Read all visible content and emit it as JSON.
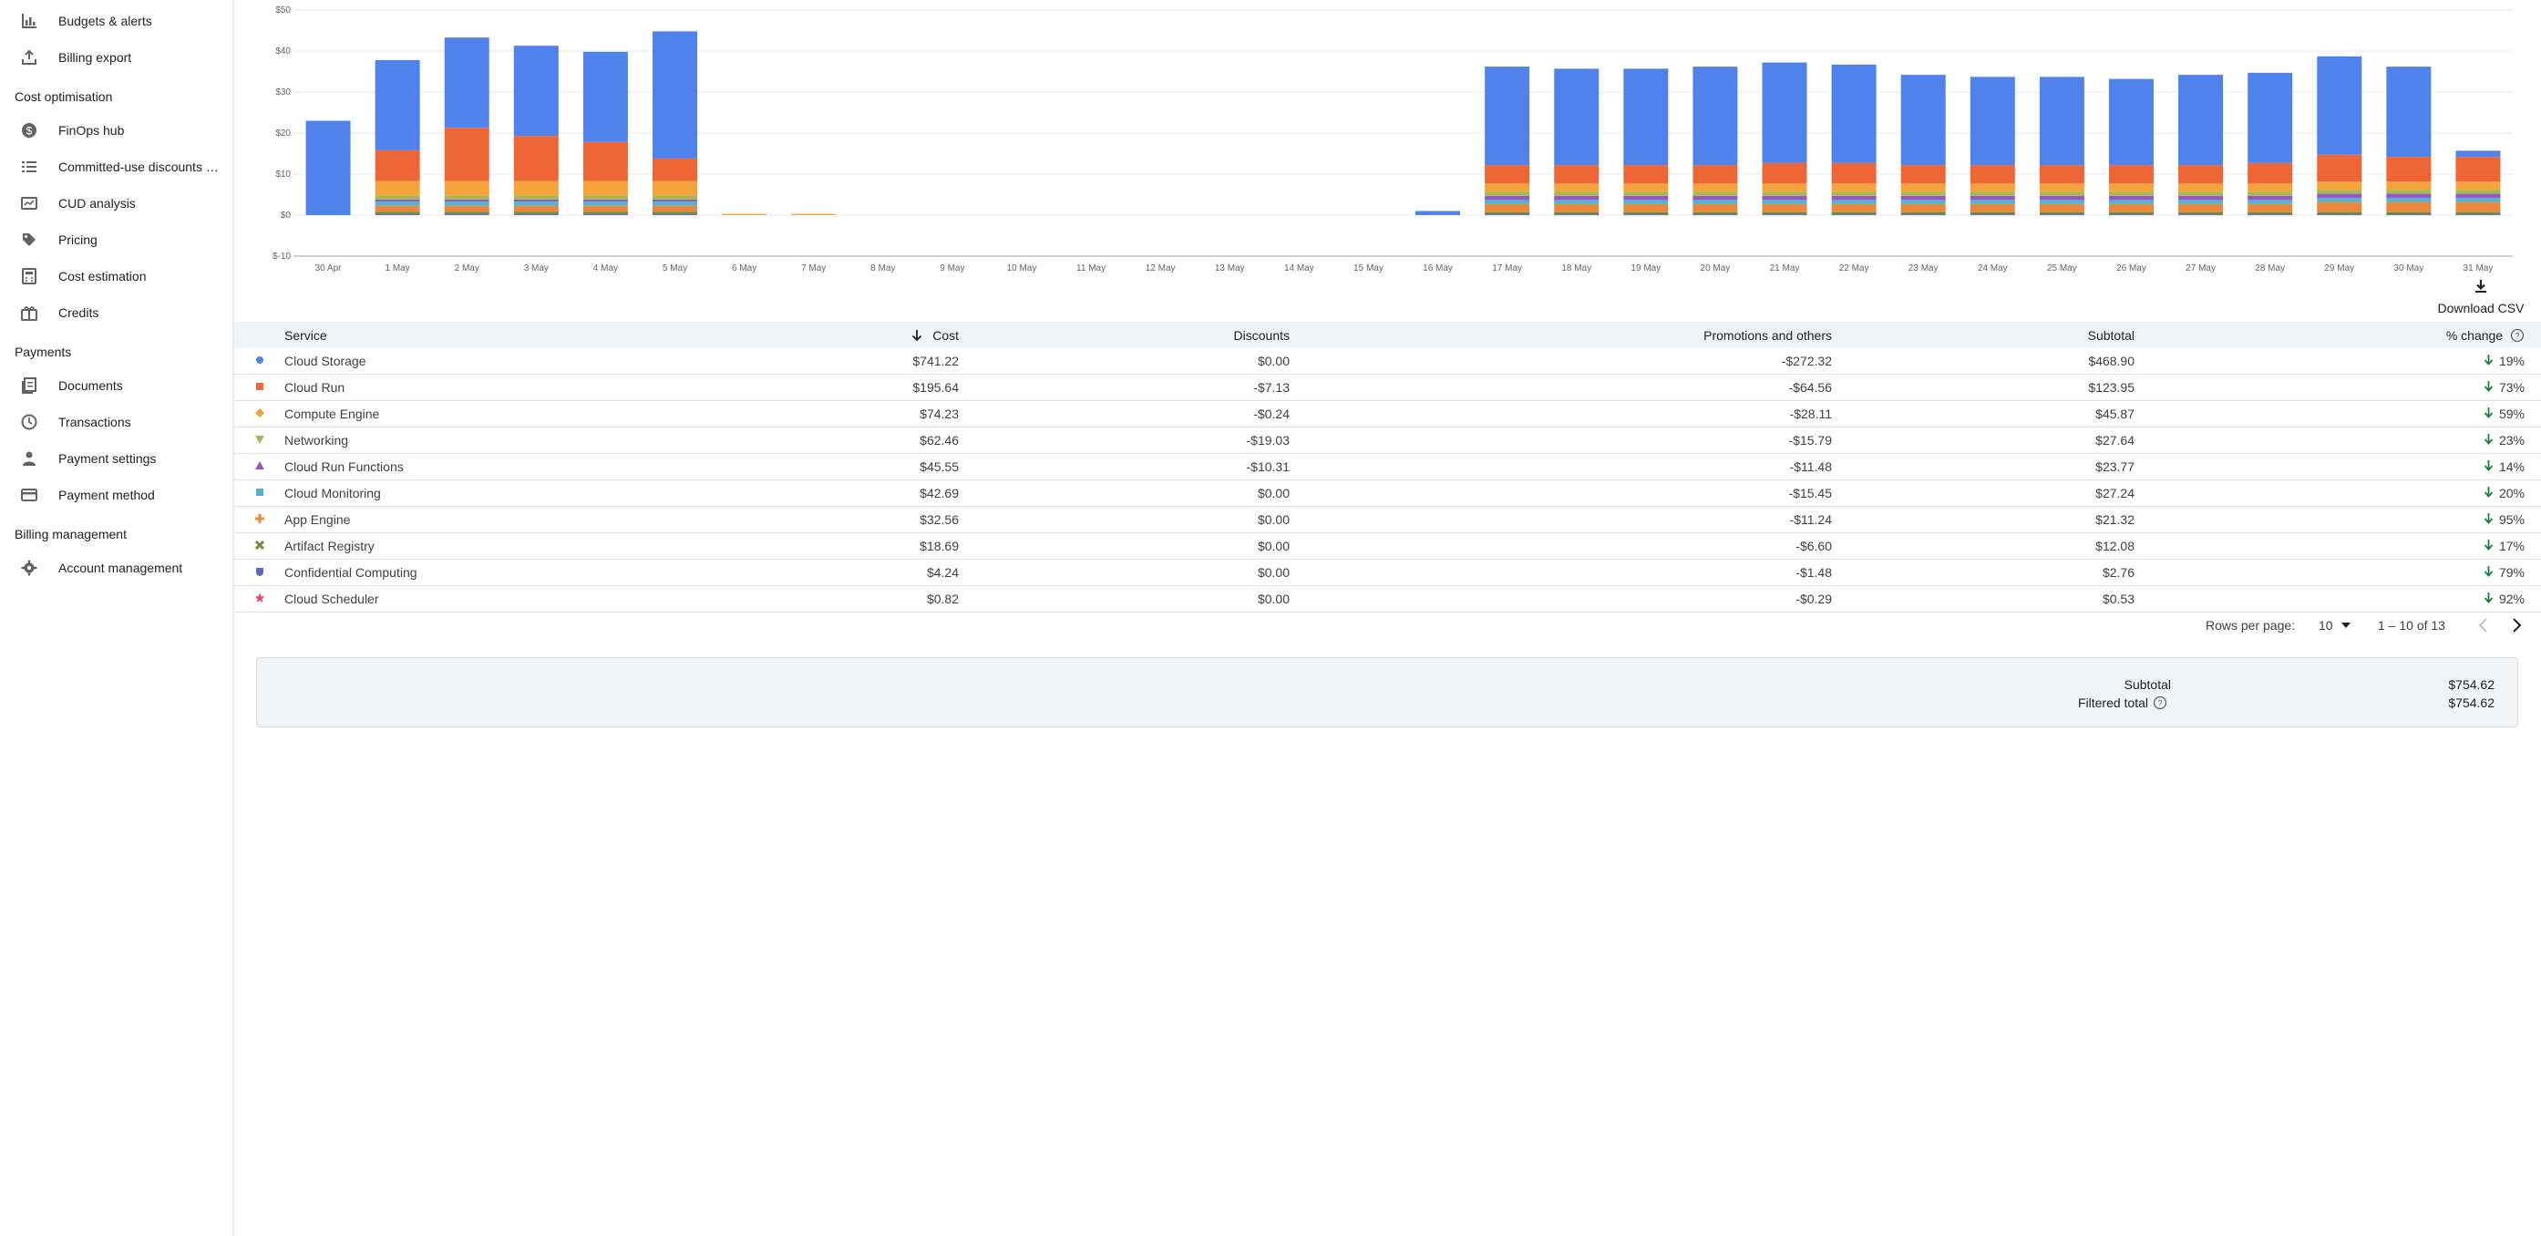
{
  "sidebar": {
    "items": [
      {
        "label": "Budgets & alerts",
        "icon": "budget-chart-icon"
      },
      {
        "label": "Billing export",
        "icon": "upload-icon"
      },
      {
        "section": "Cost optimisation"
      },
      {
        "label": "FinOps hub",
        "icon": "dollar-circle-icon"
      },
      {
        "label": "Committed-use discounts (C…",
        "icon": "list-icon"
      },
      {
        "label": "CUD analysis",
        "icon": "card-analysis-icon"
      },
      {
        "label": "Pricing",
        "icon": "tag-icon"
      },
      {
        "label": "Cost estimation",
        "icon": "calculator-icon"
      },
      {
        "label": "Credits",
        "icon": "gift-icon"
      },
      {
        "section": "Payments"
      },
      {
        "label": "Documents",
        "icon": "documents-icon"
      },
      {
        "label": "Transactions",
        "icon": "clock-icon"
      },
      {
        "label": "Payment settings",
        "icon": "person-icon"
      },
      {
        "label": "Payment method",
        "icon": "credit-card-icon"
      },
      {
        "section": "Billing management"
      },
      {
        "label": "Account management",
        "icon": "gear-icon"
      }
    ]
  },
  "chart_data": {
    "type": "bar",
    "stacked": true,
    "ylim": [
      -10,
      50
    ],
    "yticks": [
      "$-10",
      "$0",
      "$10",
      "$20",
      "$30",
      "$40",
      "$50"
    ],
    "categories": [
      "30 Apr",
      "1 May",
      "2 May",
      "3 May",
      "4 May",
      "5 May",
      "6 May",
      "7 May",
      "8 May",
      "9 May",
      "10 May",
      "11 May",
      "12 May",
      "13 May",
      "14 May",
      "15 May",
      "16 May",
      "17 May",
      "18 May",
      "19 May",
      "20 May",
      "21 May",
      "22 May",
      "23 May",
      "24 May",
      "25 May",
      "26 May",
      "27 May",
      "28 May",
      "29 May",
      "30 May",
      "31 May"
    ],
    "grid": true,
    "series": [
      {
        "name": "Cloud Storage",
        "color": "#4f83eb",
        "values": [
          23,
          22,
          22,
          22,
          22,
          31,
          0,
          0,
          0,
          0,
          0,
          0,
          0,
          0,
          0,
          0,
          1,
          24,
          23.5,
          23.5,
          24,
          24.5,
          24,
          22,
          21.5,
          21.5,
          21,
          22,
          22,
          24,
          22,
          1.5
        ]
      },
      {
        "name": "Cloud Run",
        "color": "#ee6635",
        "values": [
          0,
          7.5,
          13,
          11,
          9.5,
          5.5,
          0,
          0,
          0,
          0,
          0,
          0,
          0,
          0,
          0,
          0,
          0,
          4.5,
          4.5,
          4.5,
          4.5,
          5,
          5,
          4.5,
          4.5,
          4.5,
          4.5,
          4.5,
          5,
          6.5,
          6,
          6
        ]
      },
      {
        "name": "Compute Engine",
        "color": "#f5a43c",
        "values": [
          0,
          3.5,
          3.5,
          3.5,
          3.5,
          3.5,
          0.3,
          0.3,
          0,
          0,
          0,
          0,
          0,
          0,
          0,
          0,
          0,
          2,
          2,
          2,
          2,
          2,
          2,
          2,
          2,
          2,
          2,
          2,
          2,
          2,
          2,
          2
        ]
      },
      {
        "name": "Networking",
        "color": "#a6b851",
        "values": [
          0,
          1,
          1,
          1,
          1,
          1,
          0,
          0,
          0,
          0,
          0,
          0,
          0,
          0,
          0,
          0,
          0,
          1,
          1,
          1,
          1,
          1,
          1,
          1,
          1,
          1,
          1,
          1,
          1,
          1,
          1,
          1
        ]
      },
      {
        "name": "Cloud Run Functions",
        "color": "#9d53c8",
        "values": [
          0,
          0.5,
          0.5,
          0.5,
          0.5,
          0.5,
          0,
          0,
          0,
          0,
          0,
          0,
          0,
          0,
          0,
          0,
          0,
          1,
          1,
          1,
          1,
          1,
          1,
          1,
          1,
          1,
          1,
          1,
          1,
          1,
          1,
          1
        ]
      },
      {
        "name": "Cloud Monitoring",
        "color": "#50b3cf",
        "values": [
          0,
          1,
          1,
          1,
          1,
          1,
          0,
          0,
          0,
          0,
          0,
          0,
          0,
          0,
          0,
          0,
          0,
          1,
          1,
          1,
          1,
          1,
          1,
          1,
          1,
          1,
          1,
          1,
          1,
          1,
          1,
          1
        ]
      },
      {
        "name": "App Engine",
        "color": "#e8883a",
        "values": [
          0,
          1.5,
          1.5,
          1.5,
          1.5,
          1.5,
          0,
          0,
          0,
          0,
          0,
          0,
          0,
          0,
          0,
          0,
          0,
          2,
          2,
          2,
          2,
          2,
          2,
          2,
          2,
          2,
          2,
          2,
          2,
          2.5,
          2.5,
          2.5
        ]
      },
      {
        "name": "Artifact Registry",
        "color": "#6d8a3c",
        "values": [
          0,
          0.5,
          0.5,
          0.5,
          0.5,
          0.5,
          0,
          0,
          0,
          0,
          0,
          0,
          0,
          0,
          0,
          0,
          0,
          0.5,
          0.5,
          0.5,
          0.5,
          0.5,
          0.5,
          0.5,
          0.5,
          0.5,
          0.5,
          0.5,
          0.5,
          0.5,
          0.5,
          0.5
        ]
      },
      {
        "name": "Confidential Computing",
        "color": "#5c6bc0",
        "values": [
          0,
          0.3,
          0.3,
          0.3,
          0.3,
          0.3,
          0,
          0,
          0,
          0,
          0,
          0,
          0,
          0,
          0,
          0,
          0,
          0.2,
          0.2,
          0.2,
          0.2,
          0.2,
          0.2,
          0.2,
          0.2,
          0.2,
          0.2,
          0.2,
          0.2,
          0.2,
          0.2,
          0.2
        ]
      }
    ]
  },
  "download_label": "Download CSV",
  "table": {
    "headers": {
      "service": "Service",
      "cost": "Cost",
      "discounts": "Discounts",
      "promotions": "Promotions and others",
      "subtotal": "Subtotal",
      "change": "% change"
    },
    "rows": [
      {
        "service": "Cloud Storage",
        "cost": "$741.22",
        "discounts": "$0.00",
        "promotions": "-$272.32",
        "subtotal": "$468.90",
        "change": "19%",
        "marker": "circle",
        "color": "#4f83eb"
      },
      {
        "service": "Cloud Run",
        "cost": "$195.64",
        "discounts": "-$7.13",
        "promotions": "-$64.56",
        "subtotal": "$123.95",
        "change": "73%",
        "marker": "square",
        "color": "#ee6635"
      },
      {
        "service": "Compute Engine",
        "cost": "$74.23",
        "discounts": "-$0.24",
        "promotions": "-$28.11",
        "subtotal": "$45.87",
        "change": "59%",
        "marker": "diamond",
        "color": "#f5a43c"
      },
      {
        "service": "Networking",
        "cost": "$62.46",
        "discounts": "-$19.03",
        "promotions": "-$15.79",
        "subtotal": "$27.64",
        "change": "23%",
        "marker": "triangle-down",
        "color": "#a6b851"
      },
      {
        "service": "Cloud Run Functions",
        "cost": "$45.55",
        "discounts": "-$10.31",
        "promotions": "-$11.48",
        "subtotal": "$23.77",
        "change": "14%",
        "marker": "triangle-up",
        "color": "#9d53c8"
      },
      {
        "service": "Cloud Monitoring",
        "cost": "$42.69",
        "discounts": "$0.00",
        "promotions": "-$15.45",
        "subtotal": "$27.24",
        "change": "20%",
        "marker": "square",
        "color": "#50b3cf"
      },
      {
        "service": "App Engine",
        "cost": "$32.56",
        "discounts": "$0.00",
        "promotions": "-$11.24",
        "subtotal": "$21.32",
        "change": "95%",
        "marker": "plus",
        "color": "#e8883a"
      },
      {
        "service": "Artifact Registry",
        "cost": "$18.69",
        "discounts": "$0.00",
        "promotions": "-$6.60",
        "subtotal": "$12.08",
        "change": "17%",
        "marker": "cross",
        "color": "#6d8a3c"
      },
      {
        "service": "Confidential Computing",
        "cost": "$4.24",
        "discounts": "$0.00",
        "promotions": "-$1.48",
        "subtotal": "$2.76",
        "change": "79%",
        "marker": "shield",
        "color": "#5c6bc0"
      },
      {
        "service": "Cloud Scheduler",
        "cost": "$0.82",
        "discounts": "$0.00",
        "promotions": "-$0.29",
        "subtotal": "$0.53",
        "change": "92%",
        "marker": "star",
        "color": "#e8457a"
      }
    ]
  },
  "pager": {
    "rows_label": "Rows per page:",
    "rows_value": "10",
    "range": "1 – 10 of 13"
  },
  "totals": {
    "subtotal_label": "Subtotal",
    "subtotal_value": "$754.62",
    "filtered_label": "Filtered total",
    "filtered_value": "$754.62"
  }
}
